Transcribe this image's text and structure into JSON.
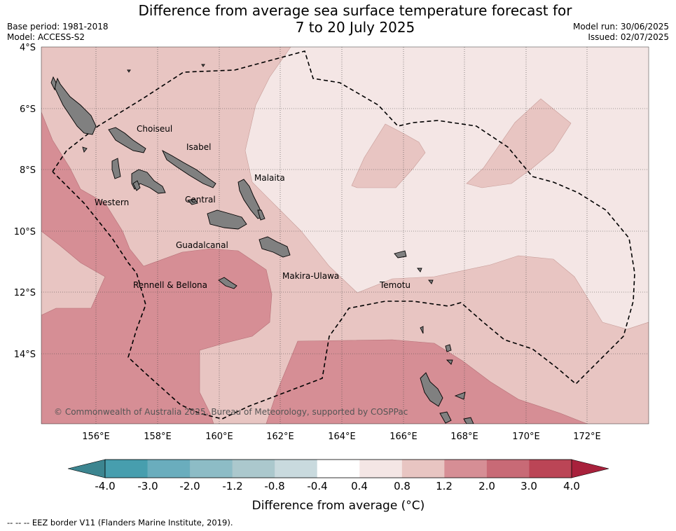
{
  "title": {
    "line1": "Difference from average sea surface temperature forecast for",
    "line2": "7 to 20 July 2025"
  },
  "meta_left": {
    "base_period": "Base period: 1981-2018",
    "model": "Model: ACCESS-S2"
  },
  "meta_right": {
    "model_run": "Model run: 30/06/2025",
    "issued": "Issued: 02/07/2025"
  },
  "map": {
    "lat_labels": [
      "4°S",
      "6°S",
      "8°S",
      "10°S",
      "12°S",
      "14°S"
    ],
    "lon_labels": [
      "156°E",
      "158°E",
      "160°E",
      "162°E",
      "164°E",
      "166°E",
      "168°E",
      "170°E",
      "172°E"
    ],
    "regions": {
      "choiseul": "Choiseul",
      "isabel": "Isabel",
      "malaita": "Malaita",
      "western": "Western",
      "central": "Central",
      "guadalcanal": "Guadalcanal",
      "makira_ulawa": "Makira-Ulawa",
      "temotu": "Temotu",
      "rennell_bellona": "Rennell & Bellona"
    },
    "copyright": "© Commonwealth of Australia 2025, Bureau of Meteorology, supported by COSPPac",
    "land_color": "#808080",
    "colors": {
      "anom_0_4_0_8": "#f4e6e5",
      "anom_0_8_1_2": "#e8c5c2",
      "anom_1_2_2_0": "#d68e95"
    }
  },
  "colorbar": {
    "ticks": [
      "-4.0",
      "-3.0",
      "-2.0",
      "-1.2",
      "-0.8",
      "-0.4",
      "0.4",
      "0.8",
      "1.2",
      "2.0",
      "3.0",
      "4.0"
    ],
    "colors": [
      "#479eae",
      "#6aadbd",
      "#8dbcc6",
      "#abc8cd",
      "#c9dade",
      "#ffffff",
      "#f4e6e5",
      "#e8c5c2",
      "#d68e95",
      "#c86a76",
      "#bb4556"
    ],
    "under_color": "#3c8590",
    "over_color": "#a8213c",
    "label": "Difference from average (°C)"
  },
  "footer": "-- -- -- EEZ border V11 (Flanders Marine Institute, 2019)."
}
